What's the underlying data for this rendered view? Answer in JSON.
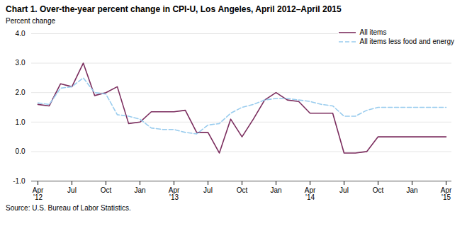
{
  "chart_data": {
    "type": "line",
    "title": "Chart 1. Over-the-year percent change in CPI-U, Los Angeles, April 2012–April 2015",
    "ylabel": "Percent change",
    "source": "Source: U.S. Bureau of Labor Statistics.",
    "categories": [
      "Apr\n'12",
      null,
      null,
      "Jul",
      null,
      null,
      "Oct",
      null,
      null,
      "Jan",
      null,
      null,
      "Apr\n'13",
      null,
      null,
      "Jul",
      null,
      null,
      "Oct",
      null,
      null,
      "Jan",
      null,
      null,
      "Apr\n'14",
      null,
      null,
      "Jul",
      null,
      null,
      "Oct",
      null,
      null,
      "Jan",
      null,
      null,
      "Apr\n'15"
    ],
    "series": [
      {
        "name": "All items",
        "color": "#7B2D5E",
        "line_style": "solid",
        "values": [
          1.6,
          1.55,
          2.3,
          2.2,
          3.0,
          1.9,
          2.0,
          2.2,
          0.95,
          1.0,
          1.35,
          1.35,
          1.35,
          1.4,
          0.65,
          0.65,
          -0.05,
          1.1,
          0.5,
          1.1,
          1.75,
          2.0,
          1.75,
          1.7,
          1.3,
          1.3,
          1.3,
          -0.05,
          -0.05,
          0.0,
          0.5,
          0.5,
          0.5,
          0.5,
          0.5,
          0.5,
          0.5
        ]
      },
      {
        "name": "All items less food and energy",
        "color": "#99CCEE",
        "line_style": "dashed",
        "values": [
          1.65,
          1.6,
          2.15,
          2.2,
          2.5,
          2.0,
          1.95,
          1.25,
          1.2,
          1.1,
          0.8,
          0.75,
          0.75,
          0.65,
          0.6,
          0.9,
          0.95,
          1.3,
          1.5,
          1.6,
          1.75,
          1.8,
          1.8,
          1.75,
          1.7,
          1.6,
          1.55,
          1.2,
          1.2,
          1.4,
          1.5,
          1.5,
          1.5,
          1.5,
          1.5,
          1.5,
          1.5
        ]
      }
    ],
    "ylim": [
      -1.0,
      4.0
    ],
    "yticks": [
      {
        "value": -1.0,
        "label": "-1.0"
      },
      {
        "value": 0.0,
        "label": "0.0"
      },
      {
        "value": 1.0,
        "label": "1.0"
      },
      {
        "value": 2.0,
        "label": "2.0"
      },
      {
        "value": 3.0,
        "label": "3.0"
      },
      {
        "value": 4.0,
        "label": "4.0"
      }
    ],
    "grid": true,
    "legend": "upper right"
  }
}
